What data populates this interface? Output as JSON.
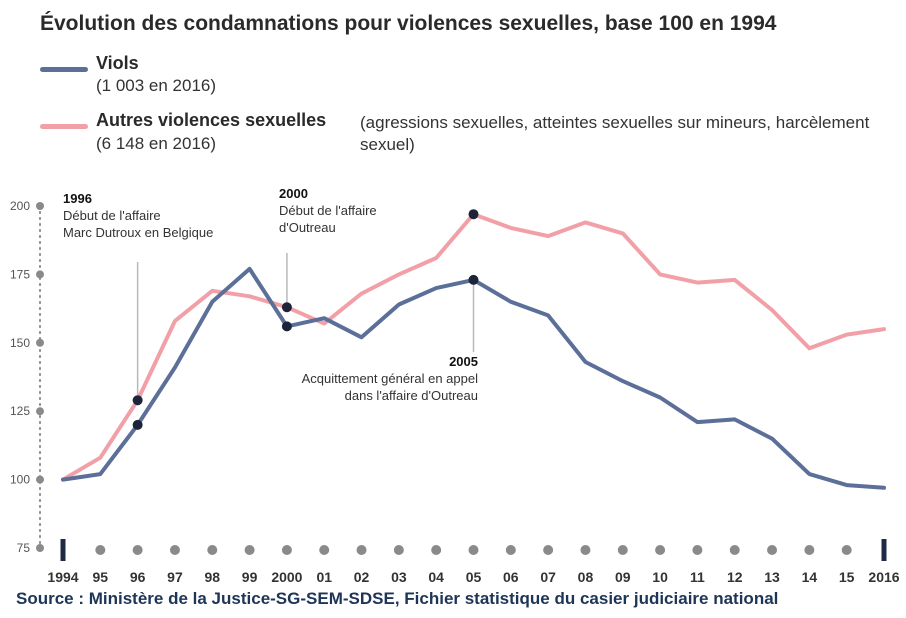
{
  "title": "Évolution des condamnations pour violences sexuelles, base 100 en 1994",
  "legend": [
    {
      "name": "Viols",
      "note": "(1 003 en 2016)",
      "description": "",
      "color": "#5b6f99"
    },
    {
      "name": "Autres violences sexuelles",
      "note": "(6 148 en 2016)",
      "description": "(agressions sexuelles, atteintes sexuelles sur mineurs, harcèlement sexuel)",
      "color": "#f2a0a8"
    }
  ],
  "source": "Source : Ministère de la Justice-SG-SEM-SDSE, Fichier statistique du casier judiciaire national",
  "chart_data": {
    "type": "line",
    "title": "Évolution des condamnations pour violences sexuelles, base 100 en 1994",
    "xlabel": "",
    "ylabel": "",
    "x": [
      1994,
      1995,
      1996,
      1997,
      1998,
      1999,
      2000,
      2001,
      2002,
      2003,
      2004,
      2005,
      2006,
      2007,
      2008,
      2009,
      2010,
      2011,
      2012,
      2013,
      2014,
      2015,
      2016
    ],
    "x_tick_labels": [
      "1994",
      "95",
      "96",
      "97",
      "98",
      "99",
      "2000",
      "01",
      "02",
      "03",
      "04",
      "05",
      "06",
      "07",
      "08",
      "09",
      "10",
      "11",
      "12",
      "13",
      "14",
      "15",
      "2016"
    ],
    "ylim": [
      75,
      200
    ],
    "y_ticks": [
      75,
      100,
      125,
      150,
      175,
      200
    ],
    "grid": false,
    "series": [
      {
        "name": "Viols",
        "color": "#5b6f99",
        "values": [
          100,
          102,
          120,
          141,
          165,
          177,
          156,
          159,
          152,
          164,
          170,
          173,
          165,
          160,
          143,
          136,
          130,
          121,
          122,
          115,
          102,
          98,
          97
        ]
      },
      {
        "name": "Autres violences sexuelles",
        "color": "#f2a0a8",
        "values": [
          100,
          108,
          129,
          158,
          169,
          167,
          163,
          157,
          168,
          175,
          181,
          197,
          192,
          189,
          194,
          190,
          175,
          172,
          173,
          162,
          148,
          153,
          155
        ]
      }
    ],
    "annotations": [
      {
        "year": "1996",
        "text": [
          "Début de l'affaire",
          "Marc Dutroux en Belgique"
        ],
        "x": 1996
      },
      {
        "year": "2000",
        "text": [
          "Début de l'affaire",
          "d'Outreau"
        ],
        "x": 2000
      },
      {
        "year": "2005",
        "text": [
          "Acquittement général en appel",
          "dans l'affaire d'Outreau"
        ],
        "x": 2005
      }
    ]
  }
}
